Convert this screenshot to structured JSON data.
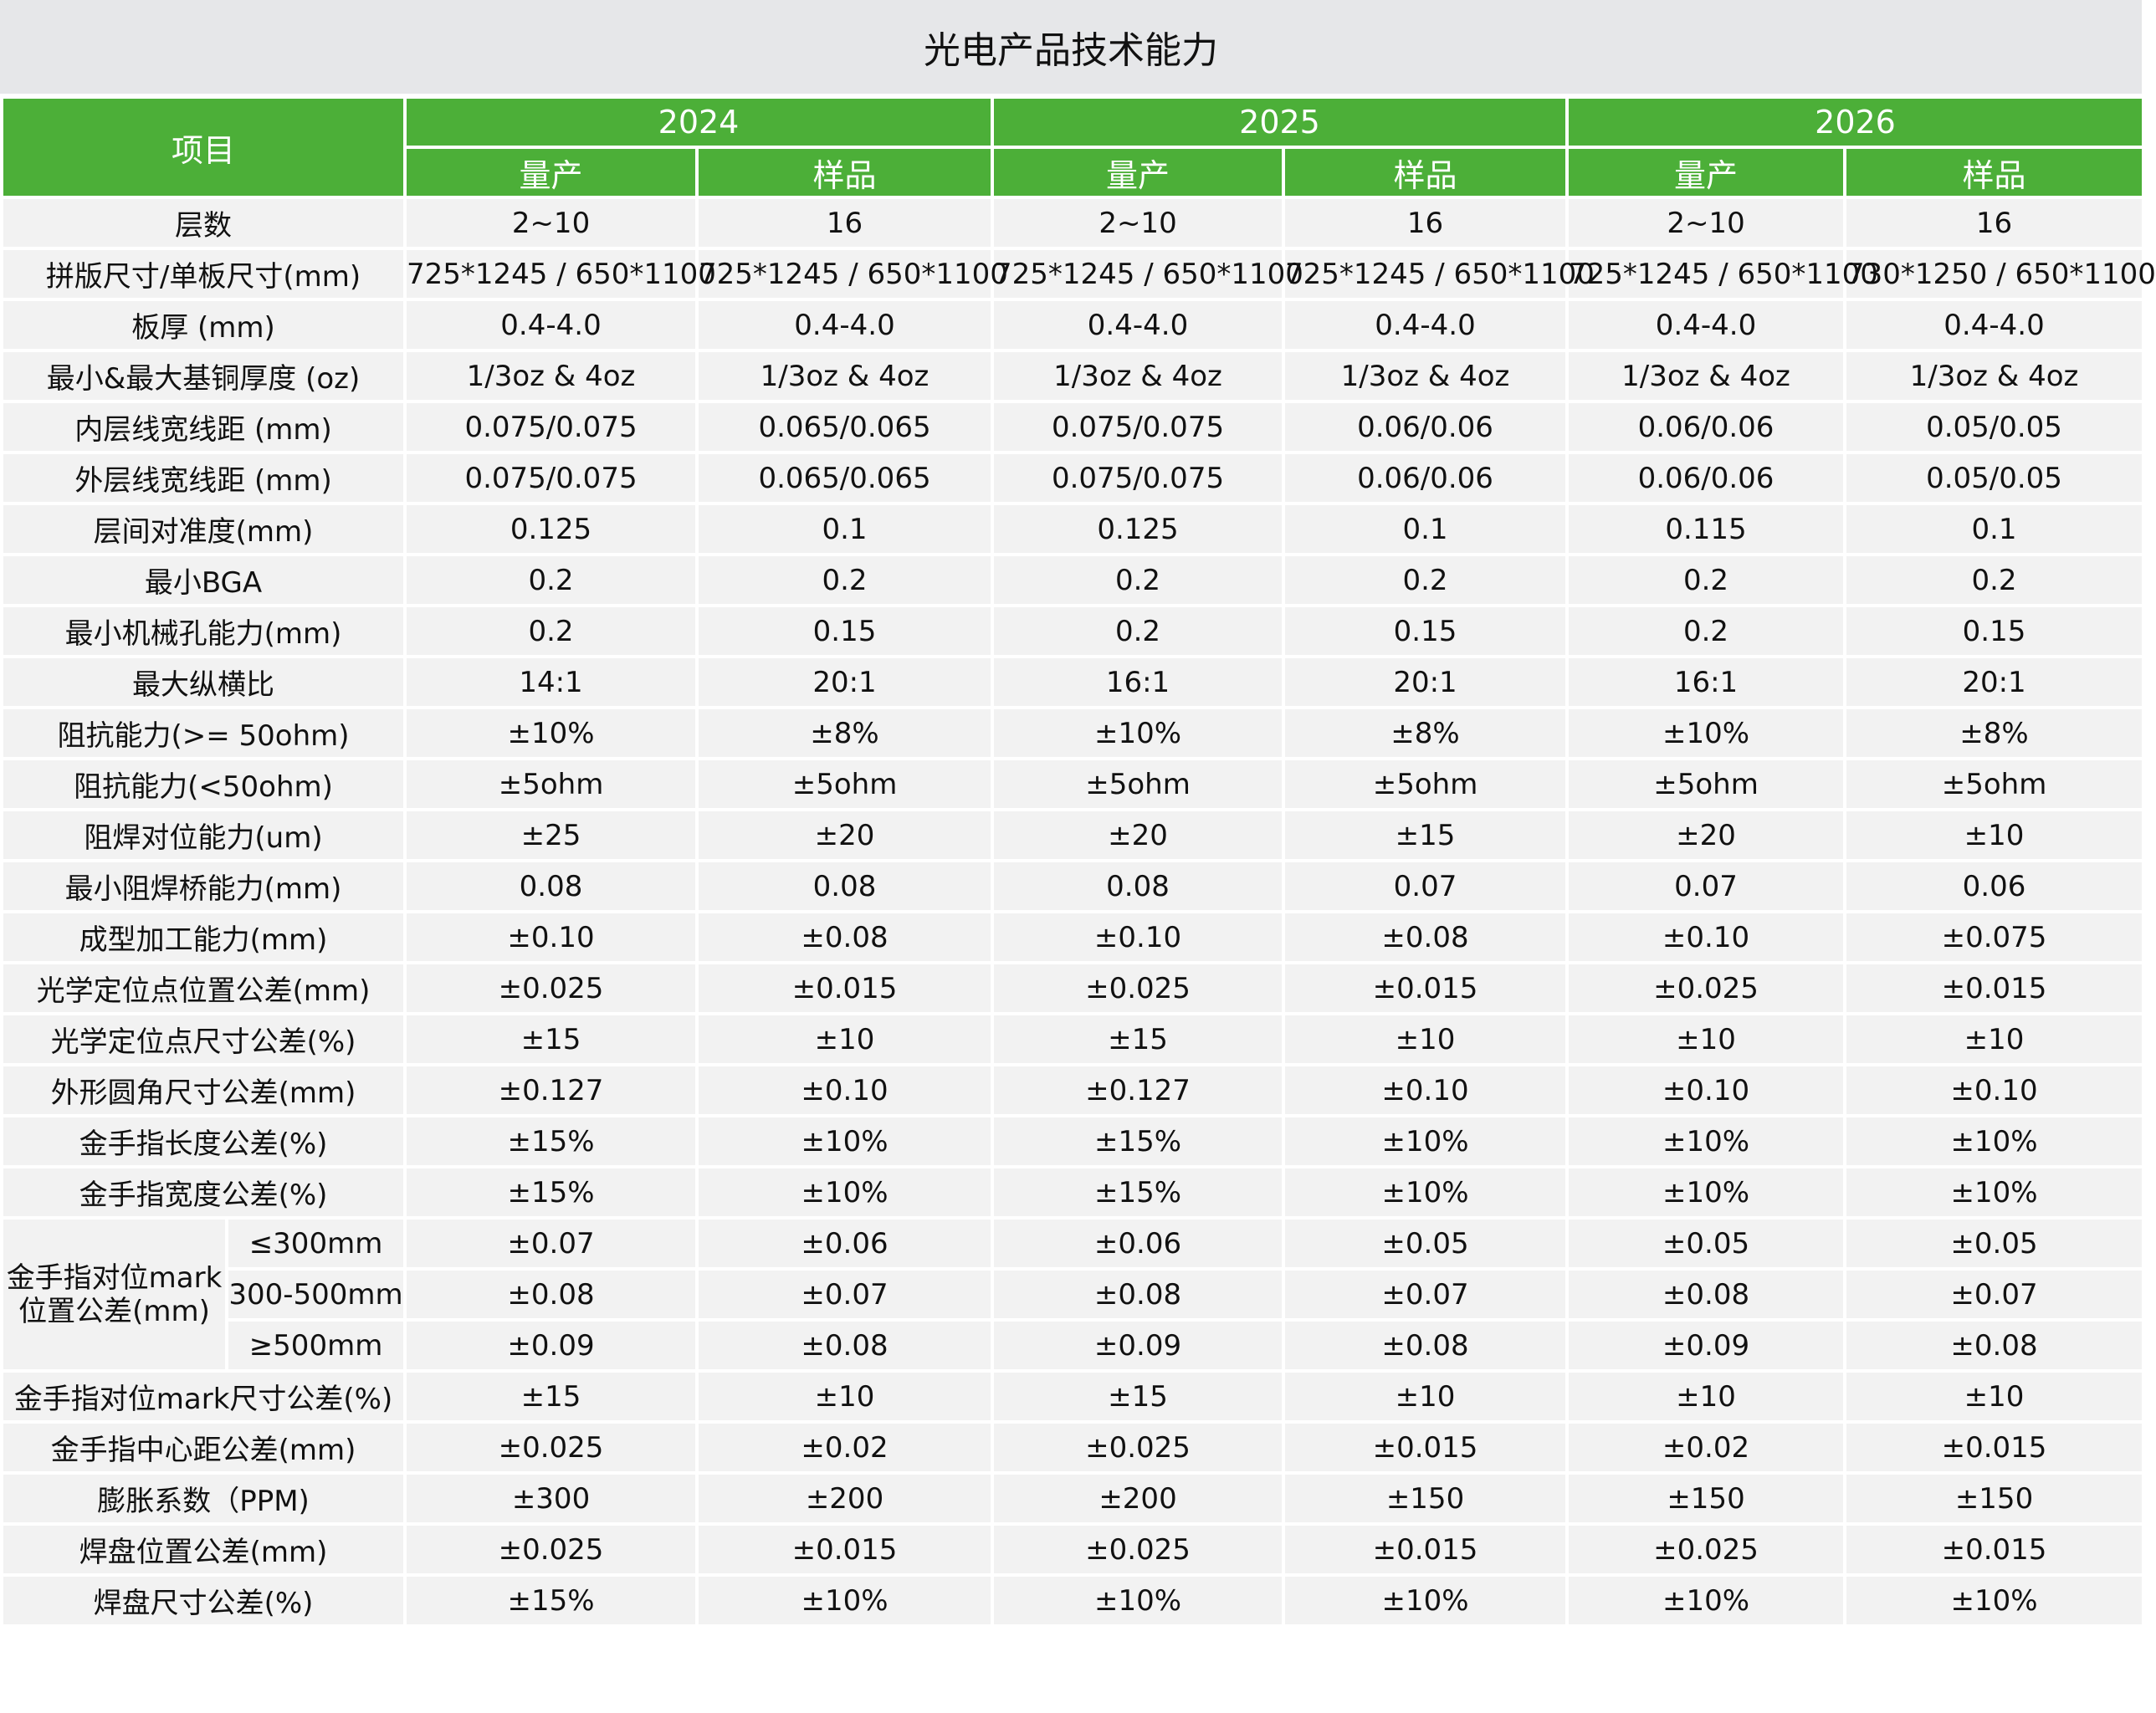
{
  "title": "光电产品技术能力",
  "header": {
    "item": "项目",
    "years": [
      "2024",
      "2025",
      "2026"
    ],
    "sub": [
      "量产",
      "样品",
      "量产",
      "样品",
      "量产",
      "样品"
    ]
  },
  "colors": {
    "header_bg": "#4caf38",
    "cell_bg": "#f2f2f2",
    "title_bg": "#e6e7e9"
  },
  "rows": [
    {
      "label": "层数",
      "values": [
        "2~10",
        "16",
        "2~10",
        "16",
        "2~10",
        "16"
      ]
    },
    {
      "label": "拼版尺寸/单板尺寸(mm)",
      "values": [
        "725*1245 / 650*1100",
        "725*1245 / 650*1100",
        "725*1245 / 650*1100",
        "725*1245 / 650*1100",
        "725*1245 / 650*1100",
        "730*1250 / 650*1100"
      ]
    },
    {
      "label": "板厚 (mm)",
      "values": [
        "0.4-4.0",
        "0.4-4.0",
        "0.4-4.0",
        "0.4-4.0",
        "0.4-4.0",
        "0.4-4.0"
      ]
    },
    {
      "label": "最小&最大基铜厚度 (oz)",
      "values": [
        "1/3oz & 4oz",
        "1/3oz & 4oz",
        "1/3oz & 4oz",
        "1/3oz & 4oz",
        "1/3oz & 4oz",
        "1/3oz & 4oz"
      ]
    },
    {
      "label": "内层线宽线距 (mm)",
      "values": [
        "0.075/0.075",
        "0.065/0.065",
        "0.075/0.075",
        "0.06/0.06",
        "0.06/0.06",
        "0.05/0.05"
      ]
    },
    {
      "label": "外层线宽线距 (mm)",
      "values": [
        "0.075/0.075",
        "0.065/0.065",
        "0.075/0.075",
        "0.06/0.06",
        "0.06/0.06",
        "0.05/0.05"
      ]
    },
    {
      "label": "层间对准度(mm)",
      "values": [
        "0.125",
        "0.1",
        "0.125",
        "0.1",
        "0.115",
        "0.1"
      ]
    },
    {
      "label": "最小BGA",
      "values": [
        "0.2",
        "0.2",
        "0.2",
        "0.2",
        "0.2",
        "0.2"
      ]
    },
    {
      "label": "最小机械孔能力(mm)",
      "values": [
        "0.2",
        "0.15",
        "0.2",
        "0.15",
        "0.2",
        "0.15"
      ]
    },
    {
      "label": "最大纵横比",
      "values": [
        "14:1",
        "20:1",
        "16:1",
        "20:1",
        "16:1",
        "20:1"
      ]
    },
    {
      "label": "阻抗能力(>= 50ohm)",
      "values": [
        "±10%",
        "±8%",
        "±10%",
        "±8%",
        "±10%",
        "±8%"
      ]
    },
    {
      "label": "阻抗能力(<50ohm)",
      "values": [
        "±5ohm",
        "±5ohm",
        "±5ohm",
        "±5ohm",
        "±5ohm",
        "±5ohm"
      ]
    },
    {
      "label": "阻焊对位能力(um)",
      "values": [
        "±25",
        "±20",
        "±20",
        "±15",
        "±20",
        "±10"
      ]
    },
    {
      "label": "最小阻焊桥能力(mm)",
      "values": [
        "0.08",
        "0.08",
        "0.08",
        "0.07",
        "0.07",
        "0.06"
      ]
    },
    {
      "label": "成型加工能力(mm)",
      "values": [
        "±0.10",
        "±0.08",
        "±0.10",
        "±0.08",
        "±0.10",
        "±0.075"
      ]
    },
    {
      "label": "光学定位点位置公差(mm)",
      "values": [
        "±0.025",
        "±0.015",
        "±0.025",
        "±0.015",
        "±0.025",
        "±0.015"
      ]
    },
    {
      "label": "光学定位点尺寸公差(%)",
      "values": [
        "±15",
        "±10",
        "±15",
        "±10",
        "±10",
        "±10"
      ]
    },
    {
      "label": "外形圆角尺寸公差(mm)",
      "values": [
        "±0.127",
        "±0.10",
        "±0.127",
        "±0.10",
        "±0.10",
        "±0.10"
      ]
    },
    {
      "label": "金手指长度公差(%)",
      "values": [
        "±15%",
        "±10%",
        "±15%",
        "±10%",
        "±10%",
        "±10%"
      ]
    },
    {
      "label": "金手指宽度公差(%)",
      "values": [
        "±15%",
        "±10%",
        "±15%",
        "±10%",
        "±10%",
        "±10%"
      ]
    },
    {
      "group": "金手指对位mark位置公差(mm)",
      "label": "≤300mm",
      "values": [
        "±0.07",
        "±0.06",
        "±0.06",
        "±0.05",
        "±0.05",
        "±0.05"
      ]
    },
    {
      "group": "金手指对位mark位置公差(mm)",
      "label": "300-500mm",
      "values": [
        "±0.08",
        "±0.07",
        "±0.08",
        "±0.07",
        "±0.08",
        "±0.07"
      ]
    },
    {
      "group": "金手指对位mark位置公差(mm)",
      "label": "≥500mm",
      "values": [
        "±0.09",
        "±0.08",
        "±0.09",
        "±0.08",
        "±0.09",
        "±0.08"
      ]
    },
    {
      "label": "金手指对位mark尺寸公差(%)",
      "values": [
        "±15",
        "±10",
        "±15",
        "±10",
        "±10",
        "±10"
      ]
    },
    {
      "label": "金手指中心距公差(mm)",
      "values": [
        "±0.025",
        "±0.02",
        "±0.025",
        "±0.015",
        "±0.02",
        "±0.015"
      ]
    },
    {
      "label": "膨胀系数（PPM)",
      "values": [
        "±300",
        "±200",
        "±200",
        "±150",
        "±150",
        "±150"
      ]
    },
    {
      "label": "焊盘位置公差(mm)",
      "values": [
        "±0.025",
        "±0.015",
        "±0.025",
        "±0.015",
        "±0.025",
        "±0.015"
      ]
    },
    {
      "label": "焊盘尺寸公差(%)",
      "values": [
        "±15%",
        "±10%",
        "±10%",
        "±10%",
        "±10%",
        "±10%"
      ]
    }
  ]
}
